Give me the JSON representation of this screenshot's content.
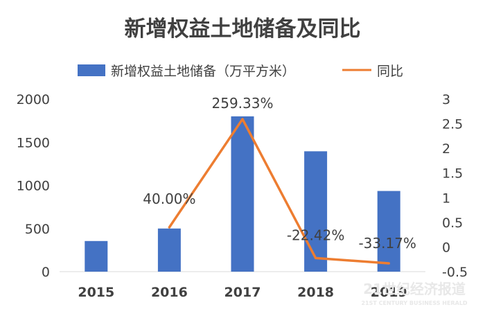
{
  "chart_data": {
    "type": "bar",
    "title": "新增权益土地储备及同比",
    "categories": [
      "2015",
      "2016",
      "2017",
      "2018",
      "2019"
    ],
    "series": [
      {
        "name": "新增权益土地储备（万平方米）",
        "type": "bar",
        "axis": "left",
        "color": "#4472C4",
        "values": [
          355,
          500,
          1800,
          1395,
          935
        ]
      },
      {
        "name": "同比",
        "type": "line",
        "axis": "right",
        "color": "#ED7D31",
        "values": [
          null,
          0.4,
          2.5933,
          -0.2242,
          -0.3317
        ],
        "labels": [
          "",
          "40.00%",
          "259.33%",
          "-22.42%",
          "-33.17%"
        ]
      }
    ],
    "y_left": {
      "min": 0,
      "max": 2000,
      "ticks": [
        "0",
        "500",
        "1000",
        "1500",
        "2000"
      ]
    },
    "y_right": {
      "min": -0.5,
      "max": 3,
      "ticks": [
        "-0.5",
        "0",
        "0.5",
        "1",
        "1.5",
        "2",
        "2.5",
        "3"
      ]
    },
    "legend_position": "top",
    "grid": false
  },
  "watermark": {
    "main": "21世纪经济报道",
    "sub": "21ST CENTURY BUSINESS HERALD"
  }
}
